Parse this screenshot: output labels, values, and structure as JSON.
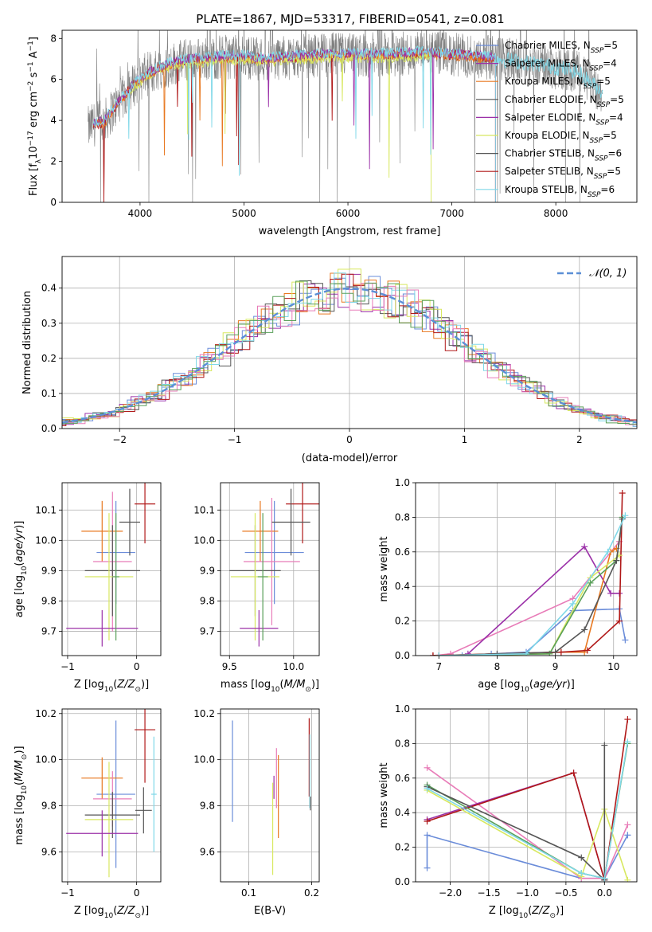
{
  "figure": {
    "title": "PLATE=1867, MJD=53317, FIBERID=0541, z=0.081"
  },
  "colors": {
    "chabrier_miles": "#6a8cd9",
    "salpeter_miles": "#9b30a8",
    "kroupa_miles": "#e87820",
    "chabrier_elodie": "#555555",
    "salpeter_elodie": "#9b30a8",
    "kroupa_elodie": "#d8e860",
    "chabrier_stelib": "#555555",
    "salpeter_stelib": "#b01818",
    "kroupa_stelib": "#80d8e8",
    "pink": "#e87cb8",
    "green": "#5aa05a",
    "normal": "#5b8fd6",
    "grid": "#b0b0b0"
  },
  "chart_data": [
    {
      "id": "spectrum",
      "type": "line",
      "title": "PLATE=1867, MJD=53317, FIBERID=0541, z=0.081",
      "xlabel": "wavelength [Angstrom, rest frame]",
      "ylabel": "Flux [f_λ 10^-17 erg cm^-2 s^-1 A^-1]",
      "xlim": [
        3250,
        8780
      ],
      "ylim": [
        0,
        8.4
      ],
      "xticks": [
        4000,
        5000,
        6000,
        7000,
        8000
      ],
      "yticks": [
        0,
        2,
        4,
        6,
        8
      ],
      "grid": false,
      "legend_position": "right",
      "legend": [
        {
          "label": "Chabrier MILES, N",
          "sub": "SSP",
          "tail": "=5",
          "color": "#6a8cd9"
        },
        {
          "label": "Salpeter MILES, N",
          "sub": "SSP",
          "tail": "=4",
          "color": "#9b30a8"
        },
        {
          "label": "Kroupa MILES, N",
          "sub": "SSP",
          "tail": "=5",
          "color": "#e87820"
        },
        {
          "label": "Chabrier ELODIE, N",
          "sub": "SSP",
          "tail": "=5",
          "color": "#555555"
        },
        {
          "label": "Salpeter ELODIE, N",
          "sub": "SSP",
          "tail": "=4",
          "color": "#9b30a8"
        },
        {
          "label": "Kroupa ELODIE, N",
          "sub": "SSP",
          "tail": "=5",
          "color": "#d8e860"
        },
        {
          "label": "Chabrier STELIB, N",
          "sub": "SSP",
          "tail": "=6",
          "color": "#555555"
        },
        {
          "label": "Salpeter STELIB, N",
          "sub": "SSP",
          "tail": "=5",
          "color": "#b01818"
        },
        {
          "label": "Kroupa STELIB, N",
          "sub": "SSP",
          "tail": "=6",
          "color": "#80d8e8"
        }
      ],
      "data_envelope": {
        "x": [
          3500,
          3550,
          3650,
          3750,
          3850,
          3950,
          4050,
          4200,
          4400,
          4600,
          4800,
          5000,
          5200,
          5500,
          5800,
          6100,
          6400,
          6700,
          7000,
          7300,
          7600,
          7900,
          8200,
          8450
        ],
        "y": [
          3.6,
          3.8,
          3.9,
          4.6,
          5.2,
          5.8,
          6.2,
          6.6,
          6.9,
          7.0,
          7.1,
          7.1,
          7.0,
          7.1,
          7.2,
          7.2,
          7.2,
          7.3,
          7.2,
          7.1,
          6.9,
          6.7,
          6.4,
          5.4
        ]
      },
      "model_range": [
        3550,
        7420
      ],
      "elodie_range": [
        3900,
        6800
      ]
    },
    {
      "id": "residuals",
      "type": "histogram",
      "xlabel": "(data-model)/error",
      "ylabel": "Normed distribution",
      "xlim": [
        -2.5,
        2.5
      ],
      "ylim": [
        0,
        0.49
      ],
      "xticks": [
        -2,
        -1,
        0,
        1,
        2
      ],
      "yticks": [
        0.0,
        0.1,
        0.2,
        0.3,
        0.4
      ],
      "grid": true,
      "legend_position": "top-right",
      "legend": [
        {
          "label": "𝒩(0, 1)",
          "color": "#5b8fd6"
        }
      ],
      "bin_width": 0.1,
      "normal": {
        "mean": 0,
        "sigma": 1
      }
    },
    {
      "id": "age-vs-z",
      "type": "errorbar",
      "xlabel": "Z [log10(Z/Z☉)]",
      "ylabel": "age [log10(age/yr)]",
      "xlim": [
        -1.08,
        0.35
      ],
      "ylim": [
        9.62,
        10.19
      ],
      "xticks": [
        -1,
        0
      ],
      "yticks": [
        9.7,
        9.8,
        9.9,
        10.0,
        10.1
      ],
      "grid": true,
      "points": [
        {
          "x": -0.3,
          "y": 9.96,
          "xerr": 0.28,
          "yerr": 0.17,
          "color": "#6a8cd9"
        },
        {
          "x": -0.5,
          "y": 10.03,
          "xerr": 0.3,
          "yerr": 0.1,
          "color": "#e87820"
        },
        {
          "x": -0.35,
          "y": 9.93,
          "xerr": 0.28,
          "yerr": 0.23,
          "color": "#e87cb8"
        },
        {
          "x": 0.12,
          "y": 10.12,
          "xerr": 0.15,
          "yerr": 0.13,
          "color": "#b01818"
        },
        {
          "x": -0.1,
          "y": 10.06,
          "xerr": 0.15,
          "yerr": 0.11,
          "color": "#555555"
        },
        {
          "x": -0.35,
          "y": 9.9,
          "xerr": 0.4,
          "yerr": 0.15,
          "color": "#555555"
        },
        {
          "x": -0.4,
          "y": 9.88,
          "xerr": 0.35,
          "yerr": 0.21,
          "color": "#d8e860"
        },
        {
          "x": -0.5,
          "y": 9.71,
          "xerr": 0.52,
          "yerr": 0.06,
          "color": "#9b30a8"
        },
        {
          "x": -0.3,
          "y": 9.88,
          "xerr": 0.05,
          "yerr": 0.21,
          "color": "#5aa05a"
        }
      ]
    },
    {
      "id": "age-vs-mass",
      "type": "errorbar",
      "xlabel": "mass [log10(M/M☉)]",
      "ylabel": "",
      "xlim": [
        9.43,
        10.2
      ],
      "ylim": [
        9.62,
        10.19
      ],
      "xticks": [
        9.5,
        10.0
      ],
      "yticks": [
        9.7,
        9.8,
        9.9,
        10.0,
        10.1
      ],
      "grid": true,
      "points": [
        {
          "x": 9.85,
          "y": 9.96,
          "xerr": 0.23,
          "yerr": 0.17,
          "color": "#6a8cd9"
        },
        {
          "x": 9.74,
          "y": 10.03,
          "xerr": 0.14,
          "yerr": 0.1,
          "color": "#e87820"
        },
        {
          "x": 9.83,
          "y": 9.93,
          "xerr": 0.22,
          "yerr": 0.21,
          "color": "#e87cb8"
        },
        {
          "x": 10.07,
          "y": 10.12,
          "xerr": 0.13,
          "yerr": 0.13,
          "color": "#b01818"
        },
        {
          "x": 9.98,
          "y": 10.06,
          "xerr": 0.15,
          "yerr": 0.11,
          "color": "#555555"
        },
        {
          "x": 9.7,
          "y": 9.9,
          "xerr": 0.2,
          "yerr": 0.15,
          "color": "#555555"
        },
        {
          "x": 9.7,
          "y": 9.88,
          "xerr": 0.19,
          "yerr": 0.21,
          "color": "#d8e860"
        },
        {
          "x": 9.73,
          "y": 9.71,
          "xerr": 0.15,
          "yerr": 0.06,
          "color": "#9b30a8"
        },
        {
          "x": 9.76,
          "y": 9.88,
          "xerr": 0.04,
          "yerr": 0.21,
          "color": "#5aa05a"
        }
      ]
    },
    {
      "id": "weight-vs-age",
      "type": "line",
      "xlabel": "age [log10(age/yr)]",
      "ylabel": "mass weight",
      "xlim": [
        6.6,
        10.4
      ],
      "ylim": [
        0,
        1.0
      ],
      "xticks": [
        7,
        8,
        9,
        10
      ],
      "yticks": [
        0.0,
        0.2,
        0.4,
        0.6,
        0.8,
        1.0
      ],
      "grid": true,
      "series": [
        {
          "color": "#6a8cd9",
          "x": [
            6.9,
            7.4,
            7.9,
            8.5,
            9.3,
            10.1,
            10.2
          ],
          "y": [
            0.0,
            0.0,
            0.01,
            0.02,
            0.26,
            0.27,
            0.09
          ]
        },
        {
          "color": "#e87cb8",
          "x": [
            6.9,
            7.2,
            9.3,
            10.1
          ],
          "y": [
            0.0,
            0.01,
            0.33,
            0.66
          ]
        },
        {
          "color": "#9b30a8",
          "x": [
            7.5,
            9.5,
            9.95,
            10.1
          ],
          "y": [
            0.01,
            0.63,
            0.36,
            0.36
          ]
        },
        {
          "color": "#e87820",
          "x": [
            6.9,
            9.1,
            9.5,
            9.95,
            10.05
          ],
          "y": [
            0.0,
            0.02,
            0.02,
            0.6,
            0.62
          ]
        },
        {
          "color": "#b01818",
          "x": [
            6.9,
            9.1,
            9.55,
            10.1,
            10.15
          ],
          "y": [
            0.0,
            0.02,
            0.03,
            0.2,
            0.94
          ]
        },
        {
          "color": "#d8e860",
          "x": [
            7.0,
            8.9,
            9.6,
            10.1
          ],
          "y": [
            0.0,
            0.01,
            0.45,
            0.58
          ]
        },
        {
          "color": "#5aa05a",
          "x": [
            7.0,
            8.9,
            9.6,
            10.05,
            10.15
          ],
          "y": [
            0.0,
            0.01,
            0.42,
            0.55,
            0.8
          ]
        },
        {
          "color": "#555555",
          "x": [
            7.0,
            8.0,
            9.0,
            9.5,
            10.05,
            10.15
          ],
          "y": [
            0.0,
            0.01,
            0.02,
            0.15,
            0.55,
            0.79
          ]
        },
        {
          "color": "#80d8e8",
          "x": [
            7.0,
            8.5,
            9.3,
            9.9,
            10.2
          ],
          "y": [
            0.0,
            0.01,
            0.3,
            0.6,
            0.81
          ]
        }
      ]
    },
    {
      "id": "mass-vs-z",
      "type": "errorbar",
      "xlabel": "Z [log10(Z/Z☉)]",
      "ylabel": "mass [log10(M/M☉)]",
      "xlim": [
        -1.08,
        0.35
      ],
      "ylim": [
        9.47,
        10.22
      ],
      "xticks": [
        -1,
        0
      ],
      "yticks": [
        9.6,
        9.8,
        10.0,
        10.2
      ],
      "grid": true,
      "points": [
        {
          "x": -0.3,
          "y": 9.85,
          "xerr": 0.28,
          "yerr": 0.32,
          "color": "#6a8cd9"
        },
        {
          "x": -0.5,
          "y": 9.92,
          "xerr": 0.3,
          "yerr": 0.09,
          "color": "#e87820"
        },
        {
          "x": -0.35,
          "y": 9.83,
          "xerr": 0.28,
          "yerr": 0.12,
          "color": "#e87cb8"
        },
        {
          "x": 0.12,
          "y": 10.13,
          "xerr": 0.15,
          "yerr": 0.23,
          "color": "#b01818"
        },
        {
          "x": 0.1,
          "y": 9.78,
          "xerr": 0.12,
          "yerr": 0.1,
          "color": "#555555"
        },
        {
          "x": -0.35,
          "y": 9.76,
          "xerr": 0.4,
          "yerr": 0.1,
          "color": "#555555"
        },
        {
          "x": -0.4,
          "y": 9.74,
          "xerr": 0.35,
          "yerr": 0.25,
          "color": "#d8e860"
        },
        {
          "x": -0.5,
          "y": 9.68,
          "xerr": 0.52,
          "yerr": 0.1,
          "color": "#9b30a8"
        },
        {
          "x": 0.25,
          "y": 9.85,
          "xerr": 0.04,
          "yerr": 0.25,
          "color": "#80d8e8"
        }
      ]
    },
    {
      "id": "mass-vs-ebv",
      "type": "errorbar",
      "xlabel": "E(B-V)",
      "ylabel": "",
      "xlim": [
        0.055,
        0.212
      ],
      "ylim": [
        9.47,
        10.22
      ],
      "xticks": [
        0.1,
        0.2
      ],
      "yticks": [
        9.6,
        9.8,
        10.0,
        10.2
      ],
      "grid": true,
      "points": [
        {
          "x": 0.074,
          "y": 9.95,
          "xerr": 0,
          "yerr": 0.22,
          "color": "#6a8cd9"
        },
        {
          "x": 0.138,
          "y": 9.7,
          "xerr": 0,
          "yerr": 0.2,
          "color": "#d8e860"
        },
        {
          "x": 0.14,
          "y": 9.88,
          "xerr": 0,
          "yerr": 0.05,
          "color": "#9b30a8"
        },
        {
          "x": 0.144,
          "y": 9.92,
          "xerr": 0,
          "yerr": 0.13,
          "color": "#e87cb8"
        },
        {
          "x": 0.147,
          "y": 9.84,
          "xerr": 0,
          "yerr": 0.18,
          "color": "#e87820"
        },
        {
          "x": 0.196,
          "y": 10.01,
          "xerr": 0,
          "yerr": 0.17,
          "color": "#b01818"
        },
        {
          "x": 0.197,
          "y": 9.95,
          "xerr": 0,
          "yerr": 0.16,
          "color": "#80d8e8"
        },
        {
          "x": 0.198,
          "y": 9.81,
          "xerr": 0,
          "yerr": 0.03,
          "color": "#555555"
        }
      ]
    },
    {
      "id": "weight-vs-z",
      "type": "line",
      "xlabel": "Z [log10(Z/Z☉)]",
      "ylabel": "mass weight",
      "xlim": [
        -2.45,
        0.42
      ],
      "ylim": [
        0,
        1.0
      ],
      "xticks": [
        -2.0,
        -1.5,
        -1.0,
        -0.5,
        0.0
      ],
      "yticks": [
        0.0,
        0.2,
        0.4,
        0.6,
        0.8,
        1.0
      ],
      "grid": true,
      "series": [
        {
          "color": "#6a8cd9",
          "x": [
            -2.3,
            -2.3,
            -0.3,
            0.0,
            0.3,
            0.3
          ],
          "y": [
            0.08,
            0.27,
            0.02,
            0.02,
            0.27,
            0.27
          ]
        },
        {
          "color": "#e87cb8",
          "x": [
            -2.3,
            -0.3,
            0.0,
            0.3
          ],
          "y": [
            0.66,
            0.02,
            0.02,
            0.33
          ]
        },
        {
          "color": "#9b30a8",
          "x": [
            -2.3,
            -0.4,
            0.0
          ],
          "y": [
            0.36,
            0.63,
            0.01
          ]
        },
        {
          "color": "#b01818",
          "x": [
            -2.3,
            -0.4,
            0.0,
            0.3
          ],
          "y": [
            0.35,
            0.63,
            0.01,
            0.94
          ]
        },
        {
          "color": "#5aa05a",
          "x": [
            -2.3,
            -0.3,
            0.0,
            0.3
          ],
          "y": [
            0.56,
            0.05,
            0.02,
            0.8
          ]
        },
        {
          "color": "#d8e860",
          "x": [
            -2.3,
            -0.3,
            0.0,
            0.3
          ],
          "y": [
            0.53,
            0.03,
            0.42,
            0.01
          ]
        },
        {
          "color": "#555555",
          "x": [
            -2.3,
            -0.3,
            0.0,
            0.0
          ],
          "y": [
            0.55,
            0.14,
            0.01,
            0.79
          ]
        },
        {
          "color": "#80d8e8",
          "x": [
            -2.3,
            -0.3,
            0.0,
            0.3
          ],
          "y": [
            0.54,
            0.05,
            0.02,
            0.81
          ]
        }
      ]
    }
  ]
}
